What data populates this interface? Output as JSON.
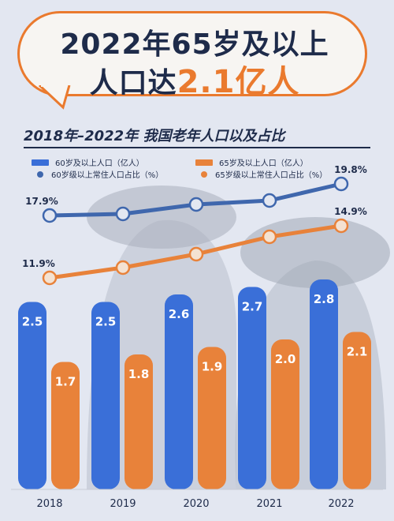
{
  "headline": {
    "line1": "2022年65岁及以上",
    "line2_prefix": "人口达",
    "line2_highlight": "2.1亿人"
  },
  "chart_data": {
    "type": "bar",
    "title": "2018年–2022年 我国老年人口以及占比",
    "categories": [
      "2018",
      "2019",
      "2020",
      "2021",
      "2022"
    ],
    "series": [
      {
        "name": "60岁及以上人口（亿人）",
        "kind": "bar",
        "color": "#3a6fd8",
        "values": [
          2.5,
          2.5,
          2.6,
          2.7,
          2.8
        ]
      },
      {
        "name": "65岁及以上人口（亿人）",
        "kind": "bar",
        "color": "#e8823a",
        "values": [
          1.7,
          1.8,
          1.9,
          2.0,
          2.1
        ]
      },
      {
        "name": "60岁级以上常住人口占比（%）",
        "kind": "line",
        "color": "#3f67ad",
        "values": [
          17.9,
          null,
          null,
          null,
          19.8
        ]
      },
      {
        "name": "65岁级以上常住人口占比（%）",
        "kind": "line",
        "color": "#e8823a",
        "values": [
          11.9,
          null,
          null,
          null,
          14.9
        ]
      }
    ],
    "grid": false,
    "legend": "top"
  },
  "colors": {
    "accent_orange": "#ea7a2e",
    "dark_navy": "#1e2b4a",
    "background": "#e3e7f1"
  }
}
